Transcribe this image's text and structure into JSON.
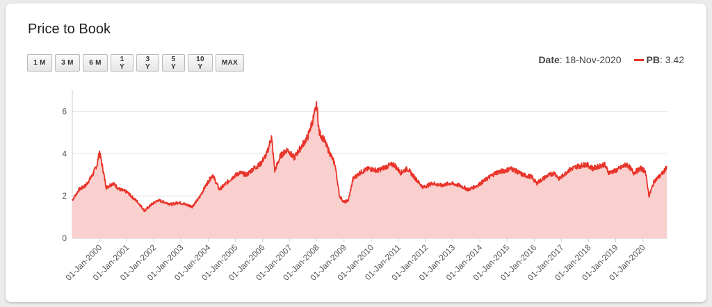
{
  "page": {
    "title": "Price to Book",
    "range_buttons": [
      "1 M",
      "3 M",
      "6 M",
      "1 Y",
      "3 Y",
      "5 Y",
      "10 Y",
      "MAX"
    ],
    "readout": {
      "date_label": "Date",
      "date_value": ": 18-Nov-2020",
      "series_label": "PB",
      "series_value": ": 3.42"
    }
  },
  "chart_data": {
    "type": "area",
    "title": "Price to Book",
    "line_color": "#e8342a",
    "fill_color": "#fad0ce",
    "grid": true,
    "ylim": [
      0,
      7
    ],
    "y_ticks": [
      0,
      2,
      4,
      6
    ],
    "x_ticks": [
      "01-Jan-2000",
      "01-Jan-2001",
      "01-Jan-2002",
      "01-Jan-2003",
      "01-Jan-2004",
      "01-Jan-2005",
      "01-Jan-2006",
      "01-Jan-2007",
      "01-Jan-2008",
      "01-Jan-2009",
      "01-Jan-2010",
      "01-Jan-2011",
      "01-Jan-2012",
      "01-Jan-2013",
      "01-Jan-2014",
      "01-Jan-2015",
      "01-Jan-2016",
      "01-Jan-2017",
      "01-Jan-2018",
      "01-Jan-2019",
      "01-Jan-2020"
    ],
    "series": [
      {
        "name": "PB",
        "points": [
          [
            "1999-01-01",
            1.8
          ],
          [
            "1999-04-01",
            2.3
          ],
          [
            "1999-07-01",
            2.5
          ],
          [
            "1999-10-01",
            3.0
          ],
          [
            "1999-12-01",
            3.5
          ],
          [
            "2000-01-01",
            4.1
          ],
          [
            "2000-02-15",
            3.3
          ],
          [
            "2000-04-01",
            2.4
          ],
          [
            "2000-07-01",
            2.6
          ],
          [
            "2000-10-01",
            2.3
          ],
          [
            "2001-01-01",
            2.2
          ],
          [
            "2001-03-01",
            2.0
          ],
          [
            "2001-06-01",
            1.7
          ],
          [
            "2001-09-01",
            1.3
          ],
          [
            "2001-12-01",
            1.6
          ],
          [
            "2002-03-01",
            1.8
          ],
          [
            "2002-06-01",
            1.7
          ],
          [
            "2002-09-01",
            1.6
          ],
          [
            "2002-12-01",
            1.7
          ],
          [
            "2003-03-01",
            1.6
          ],
          [
            "2003-06-01",
            1.5
          ],
          [
            "2003-09-01",
            1.9
          ],
          [
            "2003-12-01",
            2.5
          ],
          [
            "2004-03-01",
            3.0
          ],
          [
            "2004-06-01",
            2.3
          ],
          [
            "2004-09-01",
            2.6
          ],
          [
            "2004-12-01",
            2.9
          ],
          [
            "2005-03-01",
            3.1
          ],
          [
            "2005-06-01",
            3.0
          ],
          [
            "2005-09-01",
            3.3
          ],
          [
            "2005-12-01",
            3.5
          ],
          [
            "2006-03-01",
            4.0
          ],
          [
            "2006-05-01",
            4.8
          ],
          [
            "2006-06-15",
            3.2
          ],
          [
            "2006-09-01",
            3.9
          ],
          [
            "2006-12-01",
            4.2
          ],
          [
            "2007-03-01",
            3.8
          ],
          [
            "2007-06-01",
            4.3
          ],
          [
            "2007-09-01",
            4.8
          ],
          [
            "2007-11-01",
            5.5
          ],
          [
            "2008-01-01",
            6.3
          ],
          [
            "2008-02-01",
            5.0
          ],
          [
            "2008-04-01",
            4.7
          ],
          [
            "2008-06-01",
            4.2
          ],
          [
            "2008-09-01",
            3.5
          ],
          [
            "2008-11-01",
            2.0
          ],
          [
            "2009-01-01",
            1.7
          ],
          [
            "2009-03-01",
            1.8
          ],
          [
            "2009-05-01",
            2.8
          ],
          [
            "2009-08-01",
            3.1
          ],
          [
            "2009-12-01",
            3.3
          ],
          [
            "2010-04-01",
            3.2
          ],
          [
            "2010-08-01",
            3.4
          ],
          [
            "2010-11-01",
            3.5
          ],
          [
            "2011-02-01",
            3.1
          ],
          [
            "2011-05-01",
            3.3
          ],
          [
            "2011-08-01",
            2.9
          ],
          [
            "2011-12-01",
            2.4
          ],
          [
            "2012-04-01",
            2.6
          ],
          [
            "2012-08-01",
            2.5
          ],
          [
            "2012-12-01",
            2.6
          ],
          [
            "2013-04-01",
            2.5
          ],
          [
            "2013-08-01",
            2.3
          ],
          [
            "2013-12-01",
            2.5
          ],
          [
            "2014-04-01",
            2.8
          ],
          [
            "2014-08-01",
            3.1
          ],
          [
            "2014-12-01",
            3.2
          ],
          [
            "2015-03-01",
            3.3
          ],
          [
            "2015-08-01",
            3.0
          ],
          [
            "2015-12-01",
            2.9
          ],
          [
            "2016-02-01",
            2.6
          ],
          [
            "2016-06-01",
            2.9
          ],
          [
            "2016-10-01",
            3.1
          ],
          [
            "2016-12-01",
            2.8
          ],
          [
            "2017-04-01",
            3.2
          ],
          [
            "2017-08-01",
            3.4
          ],
          [
            "2017-12-01",
            3.5
          ],
          [
            "2018-03-01",
            3.3
          ],
          [
            "2018-08-01",
            3.5
          ],
          [
            "2018-10-01",
            3.1
          ],
          [
            "2019-01-01",
            3.2
          ],
          [
            "2019-06-01",
            3.5
          ],
          [
            "2019-09-01",
            3.1
          ],
          [
            "2019-12-01",
            3.3
          ],
          [
            "2020-02-01",
            3.2
          ],
          [
            "2020-03-25",
            2.0
          ],
          [
            "2020-06-01",
            2.7
          ],
          [
            "2020-09-01",
            3.0
          ],
          [
            "2020-10-20",
            3.2
          ],
          [
            "2020-11-18",
            3.42
          ]
        ]
      }
    ]
  }
}
